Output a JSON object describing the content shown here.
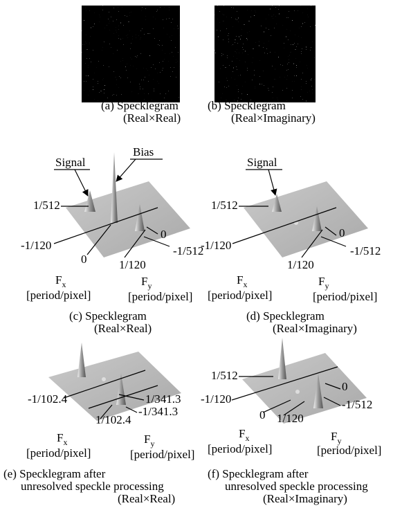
{
  "panels": [
    {
      "caption": [
        "(a) Specklegram",
        "(Real×Real)"
      ]
    },
    {
      "caption": [
        "(b) Specklegram",
        "(Real×Imaginary)"
      ]
    },
    {
      "caption": [
        "(c) Specklegram",
        "(Real×Real)"
      ],
      "annotations": [
        "Signal",
        "Bias"
      ],
      "ticks": [
        "1/512",
        "-1/120",
        "0",
        "1/120",
        "0",
        "-1/512"
      ],
      "fx": [
        "F",
        "x"
      ],
      "fy": [
        "F",
        "y"
      ],
      "fx_unit": "[period/pixel]",
      "fy_unit": "[period/pixel]"
    },
    {
      "caption": [
        "(d) Specklegram",
        "(Real×Imaginary)"
      ],
      "annotations": [
        "Signal"
      ],
      "ticks": [
        "1/512",
        "-1/120",
        "1/120",
        "0",
        "-1/512"
      ],
      "fx": [
        "F",
        "x"
      ],
      "fy": [
        "F",
        "y"
      ],
      "fx_unit": "[period/pixel]",
      "fy_unit": "[period/pixel]"
    },
    {
      "caption": [
        "(e) Specklegram after",
        "unresolved speckle processing",
        "(Real×Real)"
      ],
      "ticks": [
        "-1/102.4",
        "1/102.4",
        "1/341.3",
        "-1/341.3"
      ],
      "fx": [
        "F",
        "x"
      ],
      "fy": [
        "F",
        "y"
      ],
      "fx_unit": "[period/pixel]",
      "fy_unit": "[period/pixel]"
    },
    {
      "caption": [
        "(f) Specklegram after",
        "unresolved speckle processing",
        "(Real×Imaginary)"
      ],
      "ticks": [
        "1/512",
        "-1/120",
        "0",
        "1/120",
        "0",
        "-1/512"
      ],
      "fx": [
        "F",
        "x"
      ],
      "fy": [
        "F",
        "y"
      ],
      "fx_unit": "[period/pixel]",
      "fy_unit": "[period/pixel]"
    }
  ]
}
